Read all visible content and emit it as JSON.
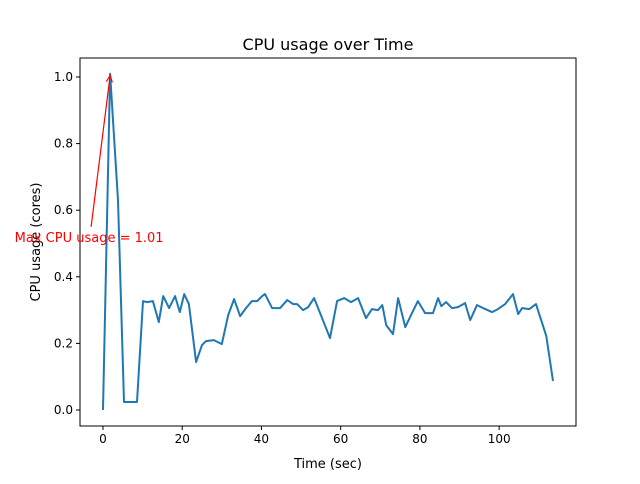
{
  "chart_data": {
    "type": "line",
    "title": "CPU usage over Time",
    "xlabel": "Time (sec)",
    "ylabel": "CPU usage (cores)",
    "xlim": [
      -5.8,
      119.4
    ],
    "ylim": [
      -0.048,
      1.057
    ],
    "xticks": [
      0,
      20,
      40,
      60,
      80,
      100
    ],
    "xtick_labels": [
      "0",
      "20",
      "40",
      "60",
      "80",
      "100"
    ],
    "yticks": [
      0.0,
      0.2,
      0.4,
      0.6,
      0.8,
      1.0
    ],
    "ytick_labels": [
      "0.0",
      "0.2",
      "0.4",
      "0.6",
      "0.8",
      "1.0"
    ],
    "grid": false,
    "line_color": "#1f77b4",
    "series": [
      {
        "name": "CPU usage",
        "x": [
          0,
          1.8,
          3.8,
          5.3,
          7.1,
          8.6,
          10.1,
          11.1,
          12.6,
          14.1,
          15.2,
          16.7,
          18.2,
          19.4,
          20.5,
          21.7,
          23.5,
          25.0,
          26.0,
          28.0,
          30.0,
          31.6,
          33.1,
          34.6,
          36.1,
          37.6,
          38.9,
          40.2,
          40.9,
          42.7,
          44.7,
          46.5,
          48.0,
          49.0,
          50.5,
          51.8,
          53.3,
          55.3,
          57.3,
          59.1,
          60.9,
          62.6,
          64.4,
          66.4,
          67.9,
          69.4,
          70.5,
          71.5,
          73.2,
          74.5,
          76.3,
          78.0,
          79.5,
          81.3,
          83.3,
          84.6,
          85.4,
          86.6,
          88.1,
          89.6,
          91.4,
          92.7,
          94.4,
          96.5,
          98.2,
          99.7,
          101.5,
          103.5,
          104.8,
          105.8,
          107.6,
          109.3,
          111.9,
          113.6
        ],
        "y": [
          0.0,
          1.01,
          0.63,
          0.024,
          0.024,
          0.024,
          0.327,
          0.324,
          0.327,
          0.264,
          0.342,
          0.306,
          0.342,
          0.294,
          0.348,
          0.318,
          0.144,
          0.195,
          0.207,
          0.21,
          0.198,
          0.285,
          0.333,
          0.282,
          0.306,
          0.327,
          0.327,
          0.342,
          0.348,
          0.306,
          0.306,
          0.33,
          0.318,
          0.318,
          0.3,
          0.309,
          0.336,
          0.276,
          0.216,
          0.327,
          0.336,
          0.324,
          0.336,
          0.276,
          0.303,
          0.3,
          0.315,
          0.255,
          0.228,
          0.336,
          0.249,
          0.291,
          0.327,
          0.291,
          0.291,
          0.336,
          0.312,
          0.324,
          0.306,
          0.309,
          0.321,
          0.27,
          0.315,
          0.303,
          0.294,
          0.303,
          0.318,
          0.348,
          0.288,
          0.306,
          0.303,
          0.318,
          0.222,
          0.087
        ]
      }
    ],
    "annotation": {
      "text": "Max CPU usage = 1.01",
      "xy": [
        1.8,
        1.01
      ],
      "xytext": [
        -3.5,
        0.55
      ],
      "color": "#ff0000"
    }
  }
}
